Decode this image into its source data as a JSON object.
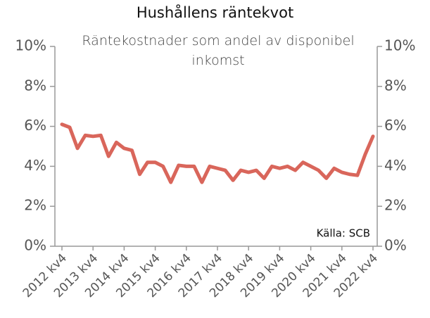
{
  "chart_data": {
    "type": "line",
    "title": "Hushållens räntekvot",
    "subtitle": "Räntekostnader som andel av disponibel inkomst",
    "annotation": "Källa: SCB",
    "categories": [
      "2012 kv4",
      null,
      null,
      null,
      "2013 kv4",
      null,
      null,
      null,
      "2014 kv4",
      null,
      null,
      null,
      "2015 kv4",
      null,
      null,
      null,
      "2016 kv4",
      null,
      null,
      null,
      "2017 kv4",
      null,
      null,
      null,
      "2018 kv4",
      null,
      null,
      null,
      "2019 kv4",
      null,
      null,
      null,
      "2020 kv4",
      null,
      null,
      null,
      "2021 kv4",
      null,
      null,
      null,
      "2022 kv4"
    ],
    "series": [
      {
        "color": "#d9665b",
        "values": [
          6.1,
          5.95,
          4.9,
          5.55,
          5.5,
          5.55,
          4.5,
          5.2,
          4.9,
          4.8,
          3.6,
          4.2,
          4.2,
          4.0,
          3.2,
          4.05,
          4.0,
          4.0,
          3.2,
          4.0,
          3.9,
          3.8,
          3.3,
          3.8,
          3.7,
          3.8,
          3.4,
          4.0,
          3.9,
          4.0,
          3.8,
          4.2,
          4.0,
          3.8,
          3.4,
          3.9,
          3.7,
          3.6,
          3.55,
          4.6,
          5.5
        ]
      }
    ],
    "ylim": [
      0,
      10
    ],
    "yticks": [
      {
        "value": 0,
        "label": "0%"
      },
      {
        "value": 2,
        "label": "2%"
      },
      {
        "value": 4,
        "label": "4%"
      },
      {
        "value": 6,
        "label": "6%"
      },
      {
        "value": 8,
        "label": "8%"
      },
      {
        "value": 10,
        "label": "10%"
      }
    ],
    "y2lim": [
      0,
      10
    ],
    "y2ticks": [
      {
        "value": 0,
        "label": "0%"
      },
      {
        "value": 2,
        "label": "2%"
      },
      {
        "value": 4,
        "label": "4%"
      },
      {
        "value": 6,
        "label": "6%"
      },
      {
        "value": 8,
        "label": "8%"
      },
      {
        "value": 10,
        "label": "10%"
      }
    ],
    "grid": false
  }
}
